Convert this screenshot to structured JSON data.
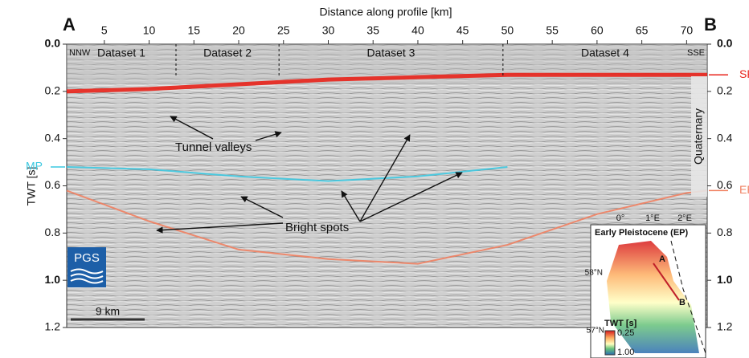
{
  "chart_data": {
    "type": "seismic",
    "x_label": "Distance along profile [km]",
    "y_label": "TWT [s]",
    "panel_labels": [
      "A",
      "B"
    ],
    "xlim": [
      0.8,
      72.3
    ],
    "xticks": [
      5,
      10,
      15,
      20,
      25,
      30,
      35,
      40,
      45,
      50,
      55,
      60,
      65,
      70
    ],
    "ylim": [
      0,
      1.2
    ],
    "y_inverted": true,
    "yticks": [
      {
        "value": 0,
        "label": "0.0"
      },
      0.2,
      0.4,
      0.6,
      0.8,
      {
        "value": 1,
        "label": "1.0"
      },
      1.2
    ],
    "directions": [
      "NNW",
      "SSE"
    ],
    "datasets": [
      "Dataset 1",
      "Dataset 2",
      "Dataset 3",
      "Dataset 4"
    ],
    "dataset_boundaries": [
      13,
      24.5,
      49.5
    ],
    "series": [
      {
        "name": "SF",
        "color": "#e8221a",
        "x": [
          0.8,
          10,
          20,
          30,
          40,
          50,
          60,
          72.3
        ],
        "values": [
          0.2,
          0.19,
          0.17,
          0.15,
          0.14,
          0.13,
          0.13,
          0.13
        ]
      },
      {
        "name": "MP",
        "color": "#3cc8e0",
        "x": [
          0.8,
          10,
          20,
          30,
          40,
          50
        ],
        "values": [
          0.52,
          0.53,
          0.56,
          0.58,
          0.56,
          0.52
        ]
      },
      {
        "name": "EP",
        "color": "#f08060",
        "x": [
          0.8,
          10,
          20,
          30,
          40,
          50,
          60,
          70,
          72.3
        ],
        "values": [
          0.62,
          0.75,
          0.87,
          0.91,
          0.93,
          0.85,
          0.72,
          0.63,
          0.62
        ]
      }
    ],
    "annotations": [
      "Tunnel valleys",
      "Bright spots"
    ],
    "unit_label": "Quaternary",
    "logo": "PGS",
    "scale_bar": "9 km",
    "inset": {
      "title": "Early Pleistocene (EP)",
      "lon_labels": [
        "0°",
        "1°E",
        "2°E"
      ],
      "lat_labels": [
        "58°N",
        "57°N"
      ],
      "points": [
        "A",
        "B"
      ],
      "colorbar_title": "TWT [s]",
      "colorbar_ticks": [
        0.25,
        {
          "value": 1,
          "label": "1.00"
        }
      ]
    }
  }
}
